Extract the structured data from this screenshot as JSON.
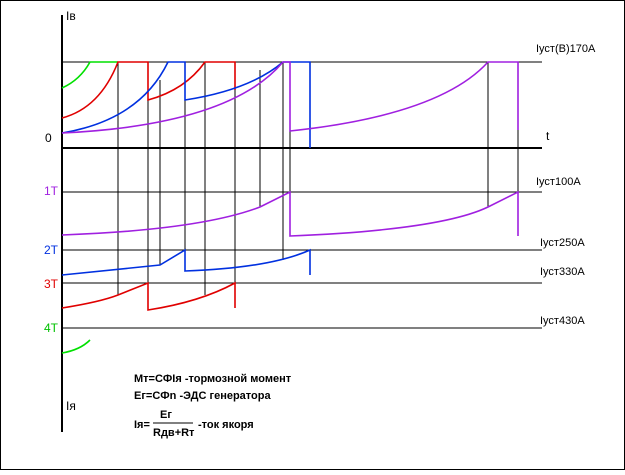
{
  "axis": {
    "top": "Iв",
    "zero": "0",
    "t": "t",
    "bottom": "Iя"
  },
  "levels": [
    {
      "left": null,
      "right": "Iуст(В)170А"
    },
    {
      "left": "1Т",
      "right": "Iуст100А"
    },
    {
      "left": "2Т",
      "right": "Iуст250А"
    },
    {
      "left": "3Т",
      "right": "Iуст330А"
    },
    {
      "left": "4Т",
      "right": "Iуст430А"
    }
  ],
  "formulas": {
    "torque": "Мт=СФIя -тормозной момент",
    "emf": "Ег=СФn -ЭДС генератора",
    "current_lhs": "Iя=",
    "numerator": "Ег",
    "denominator": "Rдв+Rт",
    "current_rhs": "-ток якоря"
  }
}
